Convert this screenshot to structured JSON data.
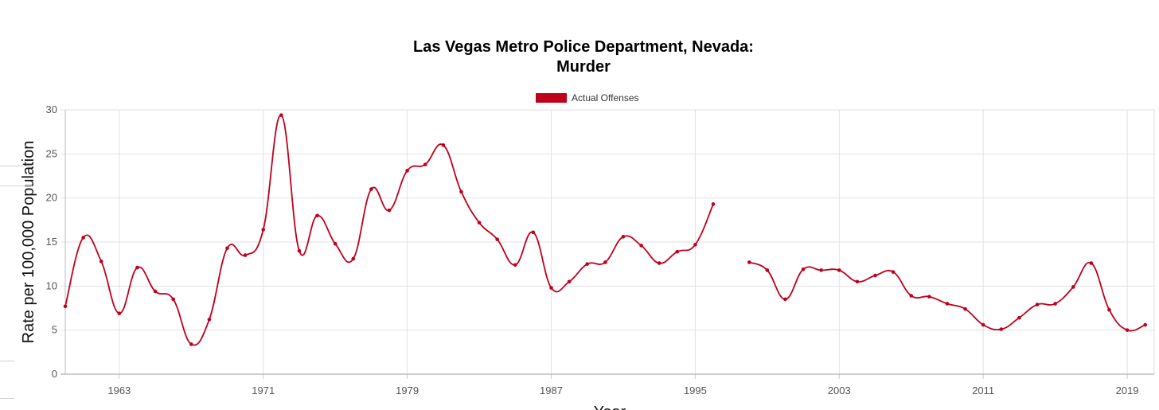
{
  "chart_data": {
    "type": "line",
    "title_lines": [
      "Las Vegas Metro Police Department, Nevada:",
      "Murder"
    ],
    "xlabel": "Year",
    "ylabel": "Rate per 100,000 Population",
    "xlim": [
      1960,
      2020.5
    ],
    "ylim": [
      0,
      30
    ],
    "y_ticks": [
      "0",
      "5",
      "10",
      "15",
      "20",
      "25",
      "30"
    ],
    "x_ticks": [
      "1963",
      "1971",
      "1979",
      "1987",
      "1995",
      "2003",
      "2011",
      "2019"
    ],
    "grid": true,
    "legend_position": "top-center",
    "series": [
      {
        "name": "Actual Offenses",
        "color": "#c0001a",
        "points": [
          [
            1960,
            7.7
          ],
          [
            1961,
            15.5
          ],
          [
            1962,
            12.8
          ],
          [
            1963,
            6.9
          ],
          [
            1964,
            12.1
          ],
          [
            1965,
            9.4
          ],
          [
            1966,
            8.5
          ],
          [
            1967,
            3.4
          ],
          [
            1968,
            6.2
          ],
          [
            1969,
            14.3
          ],
          [
            1970,
            13.5
          ],
          [
            1971,
            16.4
          ],
          [
            1972,
            29.4
          ],
          [
            1973,
            14.0
          ],
          [
            1974,
            18.0
          ],
          [
            1975,
            14.8
          ],
          [
            1976,
            13.1
          ],
          [
            1977,
            21.0
          ],
          [
            1978,
            18.6
          ],
          [
            1979,
            23.1
          ],
          [
            1980,
            23.8
          ],
          [
            1981,
            26.0
          ],
          [
            1982,
            20.7
          ],
          [
            1983,
            17.2
          ],
          [
            1984,
            15.3
          ],
          [
            1985,
            12.4
          ],
          [
            1986,
            16.1
          ],
          [
            1987,
            9.8
          ],
          [
            1988,
            10.5
          ],
          [
            1989,
            12.5
          ],
          [
            1990,
            12.7
          ],
          [
            1991,
            15.6
          ],
          [
            1992,
            14.6
          ],
          [
            1993,
            12.6
          ],
          [
            1994,
            13.9
          ],
          [
            1995,
            14.7
          ],
          [
            1996,
            19.3
          ],
          [
            1997,
            null
          ],
          [
            1998,
            12.7
          ],
          [
            1999,
            11.8
          ],
          [
            2000,
            8.5
          ],
          [
            2001,
            11.9
          ],
          [
            2002,
            11.8
          ],
          [
            2003,
            11.8
          ],
          [
            2004,
            10.5
          ],
          [
            2005,
            11.2
          ],
          [
            2006,
            11.6
          ],
          [
            2007,
            8.9
          ],
          [
            2008,
            8.8
          ],
          [
            2009,
            8.0
          ],
          [
            2010,
            7.4
          ],
          [
            2011,
            5.6
          ],
          [
            2012,
            5.1
          ],
          [
            2013,
            6.4
          ],
          [
            2014,
            7.9
          ],
          [
            2015,
            8.0
          ],
          [
            2016,
            9.9
          ],
          [
            2017,
            12.6
          ],
          [
            2018,
            7.3
          ],
          [
            2019,
            5.0
          ],
          [
            2020,
            5.6
          ]
        ]
      }
    ]
  }
}
